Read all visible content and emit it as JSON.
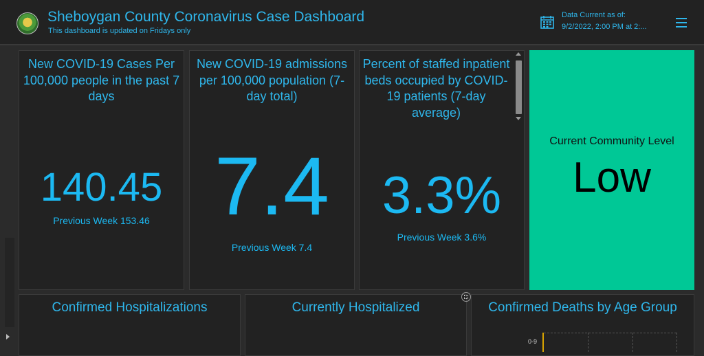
{
  "header": {
    "title": "Sheboygan County Coronavirus Case Dashboard",
    "subtitle": "This dashboard is updated on Fridays only",
    "data_current_label": "Data Current as of:",
    "data_current_value": "9/2/2022, 2:00 PM at 2:..."
  },
  "cards": [
    {
      "title": "New COVID-19 Cases Per 100,000 people in the past 7 days",
      "value": "140.45",
      "previous": "Previous Week 153.46"
    },
    {
      "title": "New COVID-19 admissions per 100,000 population (7-day total)",
      "value": "7.4",
      "previous": "Previous Week 7.4"
    },
    {
      "title": "Percent of staffed inpatient beds occupied by COVID-19 patients (7-day average)",
      "value": "3.3%",
      "previous": "Previous Week 3.6%"
    }
  ],
  "community_level": {
    "label": "Current Community Level",
    "value": "Low",
    "color": "#00c896"
  },
  "bottom_panels": [
    {
      "title": "Confirmed Hospitalizations"
    },
    {
      "title": "Currently Hospitalized"
    },
    {
      "title": "Confirmed Deaths by Age Group"
    }
  ],
  "deaths_chart": {
    "first_category": "0-9"
  },
  "colors": {
    "accent": "#2fb7ec",
    "background": "#2b2b2b",
    "card": "#222222",
    "level_low": "#00c896"
  }
}
